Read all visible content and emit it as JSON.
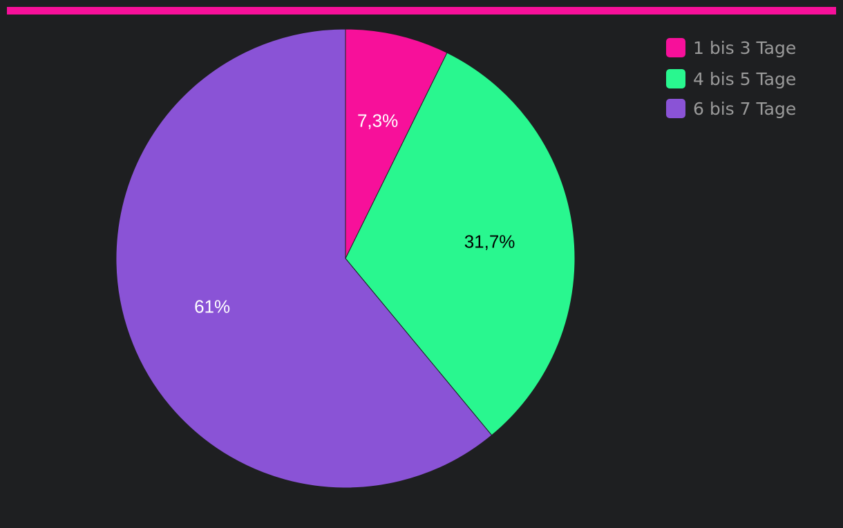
{
  "chart_data": {
    "type": "pie",
    "title": "",
    "categories": [
      "1 bis 3 Tage",
      "4 bis 5 Tage",
      "6 bis 7 Tage"
    ],
    "values": [
      7.3,
      31.7,
      61
    ],
    "data_labels": [
      "7,3%",
      "31,7%",
      "61%"
    ],
    "colors": [
      "#f7109a",
      "#29f78f",
      "#8a53d6"
    ],
    "label_colors": [
      "#ffffff",
      "#000000",
      "#ffffff"
    ],
    "start_angle": "12 o'clock",
    "direction": "clockwise",
    "legend_position": "top-right"
  },
  "header": {
    "accent_bar_color": "#f7109a"
  }
}
